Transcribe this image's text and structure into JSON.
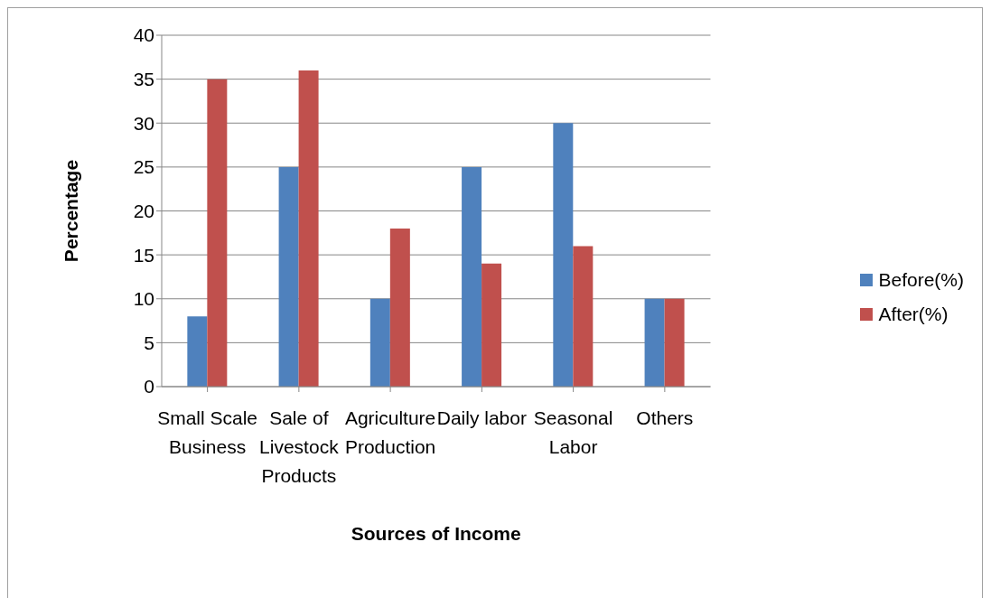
{
  "chart_data": {
    "type": "bar",
    "xlabel": "Sources of Income",
    "ylabel": "Percentage",
    "categories": [
      "Small Scale Business",
      "Sale of Livestock Products",
      "Agriculture Production",
      "Daily labor",
      "Seasonal Labor",
      "Others"
    ],
    "series": [
      {
        "name": "Before(%)",
        "color": "#4f81bd",
        "values": [
          8,
          25,
          10,
          25,
          30,
          10
        ]
      },
      {
        "name": "After(%)",
        "color": "#c0504d",
        "values": [
          35,
          36,
          18,
          14,
          16,
          10
        ]
      }
    ],
    "ylim": [
      0,
      40
    ],
    "yticks": [
      0,
      5,
      10,
      15,
      20,
      25,
      30,
      35,
      40
    ],
    "grid": "y",
    "legend": "right"
  }
}
